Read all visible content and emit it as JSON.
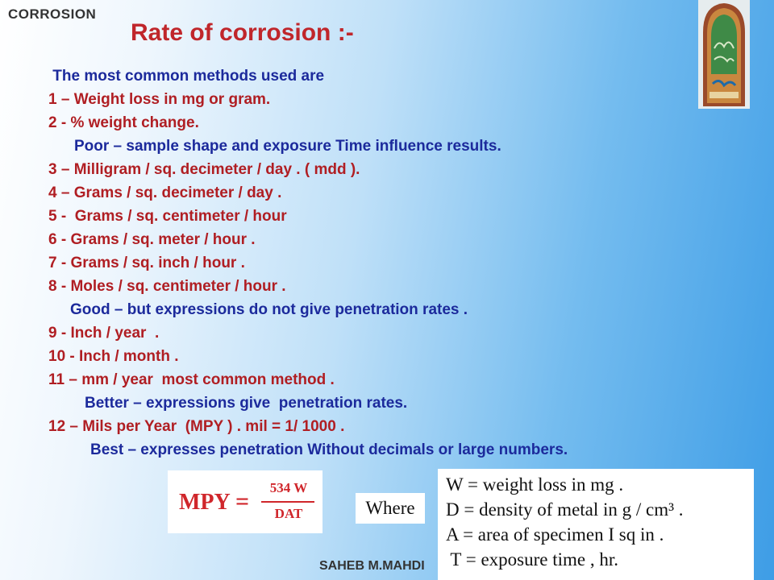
{
  "header": {
    "corner_label": "CORROSION",
    "title": "Rate of corrosion :-"
  },
  "lines": [
    {
      "text": " The most common methods used are",
      "indent": 0,
      "color": "blue"
    },
    {
      "text": "1 – Weight loss in mg or gram.",
      "indent": 0,
      "color": "red"
    },
    {
      "text": "2 - % weight change.",
      "indent": 0,
      "color": "red"
    },
    {
      "text": "Poor – sample shape and exposure Time influence results.",
      "indent": 32,
      "color": "blue"
    },
    {
      "text": "3 – Milligram / sq. decimeter / day . ( mdd ).",
      "indent": 0,
      "color": "red"
    },
    {
      "text": "4 – Grams / sq. decimeter / day .",
      "indent": 0,
      "color": "red"
    },
    {
      "text": "5 -  Grams / sq. centimeter / hour",
      "indent": 0,
      "color": "red"
    },
    {
      "text": "6 - Grams / sq. meter / hour .",
      "indent": 0,
      "color": "red"
    },
    {
      "text": "7 - Grams / sq. inch / hour .",
      "indent": 0,
      "color": "red"
    },
    {
      "text": "8 - Moles / sq. centimeter / hour .",
      "indent": 0,
      "color": "red"
    },
    {
      "text": "Good – but expressions do not give penetration rates .",
      "indent": 27,
      "color": "blue"
    },
    {
      "text": "9 - Inch / year  .",
      "indent": 0,
      "color": "red"
    },
    {
      "text": "10 - Inch / month .",
      "indent": 0,
      "color": "red"
    },
    {
      "text": "11 – mm / year  most common method .",
      "indent": 0,
      "color": "red"
    },
    {
      "text": "Better – expressions give  penetration rates.",
      "indent": 45,
      "color": "blue"
    },
    {
      "text": "12 – Mils per Year  (MPY ) . mil = 1/ 1000 .",
      "indent": 0,
      "color": "red"
    },
    {
      "text": "Best – expresses penetration Without decimals or large numbers.",
      "indent": 52,
      "color": "blue"
    }
  ],
  "formula": {
    "lhs": "MPY",
    "eq": "=",
    "numerator": "534 W",
    "denominator": "DAT"
  },
  "where_label": "Where",
  "definitions": [
    "W = weight loss in mg .",
    "D = density of metal in g / cm³ .",
    "A = area of specimen I sq in .",
    " T = exposure time , hr."
  ],
  "footer": {
    "author": "SAHEB M.MAHDI"
  }
}
